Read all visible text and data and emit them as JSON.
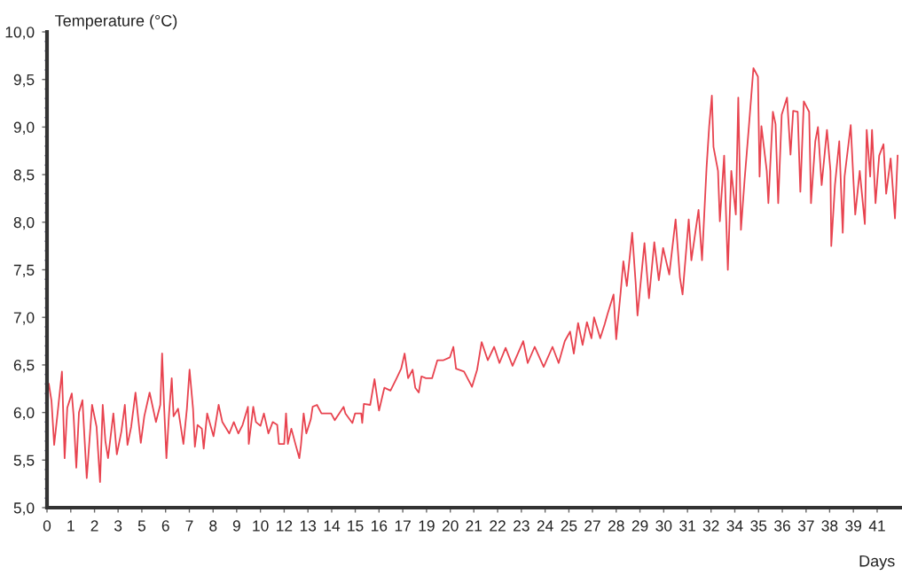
{
  "chart_data": {
    "type": "line",
    "xlabel": "Days",
    "ylabel": "Temperature (°C)",
    "line_style": "solid",
    "xlim": [
      0,
      41.7
    ],
    "ylim": [
      5,
      10
    ],
    "xticks": [
      {
        "value": 0,
        "label": "0"
      },
      {
        "value": 1.16,
        "label": "1"
      },
      {
        "value": 2.32,
        "label": "2"
      },
      {
        "value": 3.47,
        "label": "3"
      },
      {
        "value": 4.63,
        "label": "5"
      },
      {
        "value": 5.79,
        "label": "6"
      },
      {
        "value": 6.95,
        "label": "7"
      },
      {
        "value": 8.11,
        "label": "8"
      },
      {
        "value": 9.26,
        "label": "9"
      },
      {
        "value": 10.42,
        "label": "10"
      },
      {
        "value": 11.58,
        "label": "12"
      },
      {
        "value": 12.74,
        "label": "13"
      },
      {
        "value": 13.9,
        "label": "14"
      },
      {
        "value": 15.05,
        "label": "15"
      },
      {
        "value": 16.21,
        "label": "16"
      },
      {
        "value": 17.37,
        "label": "17"
      },
      {
        "value": 18.53,
        "label": "19"
      },
      {
        "value": 19.69,
        "label": "20"
      },
      {
        "value": 20.84,
        "label": "21"
      },
      {
        "value": 22.0,
        "label": "22"
      },
      {
        "value": 23.16,
        "label": "23"
      },
      {
        "value": 24.32,
        "label": "24"
      },
      {
        "value": 25.48,
        "label": "25"
      },
      {
        "value": 26.63,
        "label": "27"
      },
      {
        "value": 27.79,
        "label": "28"
      },
      {
        "value": 28.95,
        "label": "29"
      },
      {
        "value": 30.11,
        "label": "30"
      },
      {
        "value": 31.27,
        "label": "31"
      },
      {
        "value": 32.42,
        "label": "32"
      },
      {
        "value": 33.58,
        "label": "34"
      },
      {
        "value": 34.74,
        "label": "35"
      },
      {
        "value": 35.9,
        "label": "36"
      },
      {
        "value": 37.06,
        "label": "37"
      },
      {
        "value": 38.21,
        "label": "38"
      },
      {
        "value": 39.37,
        "label": "39"
      },
      {
        "value": 40.53,
        "label": "41"
      }
    ],
    "yticks": [
      {
        "value": 5,
        "label": "5,0"
      },
      {
        "value": 5.1,
        "label": null
      },
      {
        "value": 5.2,
        "label": null
      },
      {
        "value": 5.3,
        "label": null
      },
      {
        "value": 5.4,
        "label": null
      },
      {
        "value": 5.5,
        "label": "5,5"
      },
      {
        "value": 5.6,
        "label": null
      },
      {
        "value": 5.7,
        "label": null
      },
      {
        "value": 5.8,
        "label": null
      },
      {
        "value": 5.9,
        "label": null
      },
      {
        "value": 6,
        "label": "6,0"
      },
      {
        "value": 6.1,
        "label": null
      },
      {
        "value": 6.2,
        "label": null
      },
      {
        "value": 6.3,
        "label": null
      },
      {
        "value": 6.4,
        "label": null
      },
      {
        "value": 6.5,
        "label": "6,5"
      },
      {
        "value": 6.6,
        "label": null
      },
      {
        "value": 6.7,
        "label": null
      },
      {
        "value": 6.8,
        "label": null
      },
      {
        "value": 6.9,
        "label": null
      },
      {
        "value": 7,
        "label": "7,0"
      },
      {
        "value": 7.1,
        "label": null
      },
      {
        "value": 7.2,
        "label": null
      },
      {
        "value": 7.3,
        "label": null
      },
      {
        "value": 7.4,
        "label": null
      },
      {
        "value": 7.5,
        "label": "7,5"
      },
      {
        "value": 7.6,
        "label": null
      },
      {
        "value": 7.7,
        "label": null
      },
      {
        "value": 7.8,
        "label": null
      },
      {
        "value": 7.9,
        "label": null
      },
      {
        "value": 8,
        "label": "8,0"
      },
      {
        "value": 8.1,
        "label": null
      },
      {
        "value": 8.2,
        "label": null
      },
      {
        "value": 8.3,
        "label": null
      },
      {
        "value": 8.4,
        "label": null
      },
      {
        "value": 8.5,
        "label": "8,5"
      },
      {
        "value": 8.6,
        "label": null
      },
      {
        "value": 8.7,
        "label": null
      },
      {
        "value": 8.8,
        "label": null
      },
      {
        "value": 8.9,
        "label": null
      },
      {
        "value": 9,
        "label": "9,0"
      },
      {
        "value": 9.1,
        "label": null
      },
      {
        "value": 9.2,
        "label": null
      },
      {
        "value": 9.3,
        "label": null
      },
      {
        "value": 9.4,
        "label": null
      },
      {
        "value": 9.5,
        "label": "9,5"
      },
      {
        "value": 9.6,
        "label": null
      },
      {
        "value": 9.7,
        "label": null
      },
      {
        "value": 9.8,
        "label": null
      },
      {
        "value": 9.9,
        "label": null
      },
      {
        "value": 10,
        "label": "10,0"
      }
    ],
    "series": [
      {
        "color": "#e8434f",
        "x": [
          0.09,
          0.22,
          0.35,
          0.52,
          0.73,
          0.86,
          0.99,
          1.21,
          1.3,
          1.43,
          1.56,
          1.73,
          1.94,
          2.2,
          2.42,
          2.59,
          2.72,
          2.85,
          2.98,
          3.24,
          3.41,
          3.63,
          3.8,
          3.93,
          4.11,
          4.32,
          4.58,
          4.75,
          5.01,
          5.32,
          5.53,
          5.62,
          5.71,
          5.83,
          5.96,
          6.09,
          6.18,
          6.4,
          6.66,
          6.83,
          6.96,
          7.13,
          7.22,
          7.35,
          7.56,
          7.65,
          7.82,
          8.13,
          8.38,
          8.56,
          8.9,
          9.12,
          9.34,
          9.55,
          9.81,
          9.85,
          10.07,
          10.2,
          10.42,
          10.59,
          10.81,
          11.02,
          11.24,
          11.32,
          11.58,
          11.67,
          11.76,
          11.93,
          12.14,
          12.32,
          12.4,
          12.53,
          12.66,
          12.88,
          12.97,
          13.18,
          13.4,
          13.87,
          14.05,
          14.48,
          14.57,
          14.91,
          15.04,
          15.34,
          15.39,
          15.47,
          15.78,
          15.99,
          16.21,
          16.47,
          16.77,
          17.07,
          17.29,
          17.46,
          17.63,
          17.85,
          17.98,
          18.15,
          18.28,
          18.5,
          18.8,
          19.06,
          19.36,
          19.67,
          19.84,
          19.97,
          20.36,
          20.75,
          21.0,
          21.22,
          21.52,
          21.83,
          22.09,
          22.39,
          22.73,
          23.25,
          23.47,
          23.81,
          24.25,
          24.68,
          24.98,
          25.28,
          25.54,
          25.72,
          25.93,
          26.15,
          26.36,
          26.58,
          26.71,
          27.01,
          27.23,
          27.36,
          27.66,
          27.79,
          28.01,
          28.14,
          28.31,
          28.57,
          28.74,
          28.83,
          29.17,
          29.39,
          29.65,
          29.87,
          30.08,
          30.38,
          30.69,
          30.9,
          31.03,
          31.33,
          31.46,
          31.81,
          31.98,
          32.2,
          32.33,
          32.46,
          32.54,
          32.76,
          32.85,
          33.06,
          33.24,
          33.41,
          33.63,
          33.75,
          33.88,
          34.06,
          34.27,
          34.49,
          34.71,
          34.79,
          34.88,
          35.14,
          35.22,
          35.44,
          35.57,
          35.7,
          35.87,
          36.13,
          36.3,
          36.43,
          36.65,
          36.78,
          36.95,
          37.21,
          37.3,
          37.51,
          37.64,
          37.82,
          38.08,
          38.25,
          38.29,
          38.47,
          38.68,
          38.85,
          38.94,
          39.24,
          39.37,
          39.46,
          39.68,
          39.93,
          40.02,
          40.19,
          40.28,
          40.45,
          40.63,
          40.84,
          40.97,
          41.19,
          41.4,
          41.53
        ],
        "values": [
          6.3,
          6.12,
          5.66,
          6.0,
          6.43,
          5.52,
          6.05,
          6.2,
          5.96,
          5.42,
          6.0,
          6.13,
          5.31,
          6.08,
          5.85,
          5.27,
          6.08,
          5.7,
          5.52,
          5.99,
          5.56,
          5.8,
          6.08,
          5.66,
          5.85,
          6.21,
          5.68,
          5.96,
          6.21,
          5.9,
          6.08,
          6.62,
          6.1,
          5.52,
          5.99,
          6.36,
          5.96,
          6.04,
          5.67,
          6.04,
          6.45,
          6.04,
          5.64,
          5.87,
          5.83,
          5.62,
          5.99,
          5.75,
          6.08,
          5.9,
          5.78,
          5.9,
          5.78,
          5.87,
          6.06,
          5.67,
          6.06,
          5.9,
          5.86,
          5.99,
          5.78,
          5.9,
          5.87,
          5.67,
          5.67,
          5.99,
          5.67,
          5.83,
          5.66,
          5.52,
          5.66,
          5.99,
          5.78,
          5.93,
          6.06,
          6.08,
          5.99,
          5.99,
          5.92,
          6.06,
          5.99,
          5.89,
          5.99,
          5.99,
          5.89,
          6.09,
          6.08,
          6.35,
          6.02,
          6.26,
          6.23,
          6.36,
          6.46,
          6.62,
          6.36,
          6.45,
          6.26,
          6.21,
          6.38,
          6.36,
          6.36,
          6.55,
          6.55,
          6.58,
          6.69,
          6.46,
          6.43,
          6.27,
          6.45,
          6.74,
          6.55,
          6.69,
          6.52,
          6.68,
          6.49,
          6.75,
          6.52,
          6.69,
          6.48,
          6.69,
          6.52,
          6.75,
          6.85,
          6.62,
          6.94,
          6.71,
          6.95,
          6.78,
          7.0,
          6.78,
          6.93,
          7.03,
          7.24,
          6.77,
          7.27,
          7.59,
          7.33,
          7.89,
          7.36,
          7.02,
          7.78,
          7.2,
          7.79,
          7.39,
          7.73,
          7.45,
          8.03,
          7.42,
          7.24,
          8.03,
          7.6,
          8.13,
          7.6,
          8.57,
          9.01,
          9.33,
          8.79,
          8.54,
          8.01,
          8.7,
          7.5,
          8.54,
          8.08,
          9.31,
          7.92,
          8.45,
          9.01,
          9.62,
          9.53,
          8.48,
          9.01,
          8.54,
          8.2,
          9.16,
          9.03,
          8.2,
          9.13,
          9.31,
          8.71,
          9.17,
          9.16,
          8.32,
          9.27,
          9.16,
          8.2,
          8.85,
          9.0,
          8.39,
          8.97,
          8.54,
          7.75,
          8.39,
          8.85,
          7.89,
          8.48,
          9.02,
          8.45,
          8.08,
          8.54,
          7.98,
          8.97,
          8.48,
          8.97,
          8.2,
          8.7,
          8.82,
          8.3,
          8.67,
          8.04,
          8.7
        ]
      }
    ]
  }
}
